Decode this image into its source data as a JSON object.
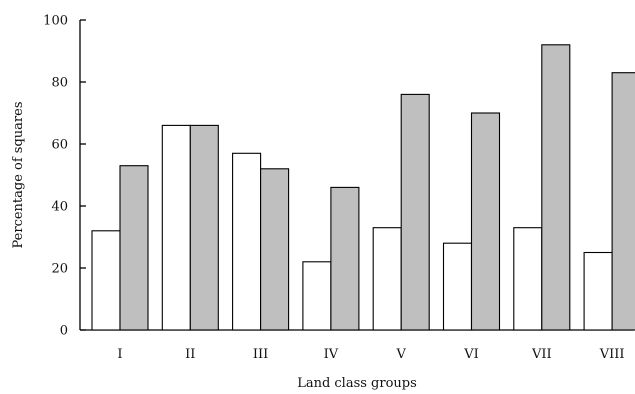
{
  "chart_data": {
    "type": "bar",
    "categories": [
      "I",
      "II",
      "III",
      "IV",
      "V",
      "VI",
      "VII",
      "VIII"
    ],
    "series": [
      {
        "values": [
          32,
          66,
          57,
          22,
          33,
          28,
          33,
          25
        ],
        "color": "#ffffff"
      },
      {
        "values": [
          53,
          66,
          52,
          46,
          76,
          70,
          92,
          83
        ],
        "color": "#bfbfbf"
      }
    ],
    "xlabel": "Land class groups",
    "ylabel": "Percentage of squares",
    "ylim": [
      0,
      100
    ],
    "yticks": [
      0,
      20,
      40,
      60,
      80,
      100
    ],
    "grid": false,
    "legend": false
  }
}
